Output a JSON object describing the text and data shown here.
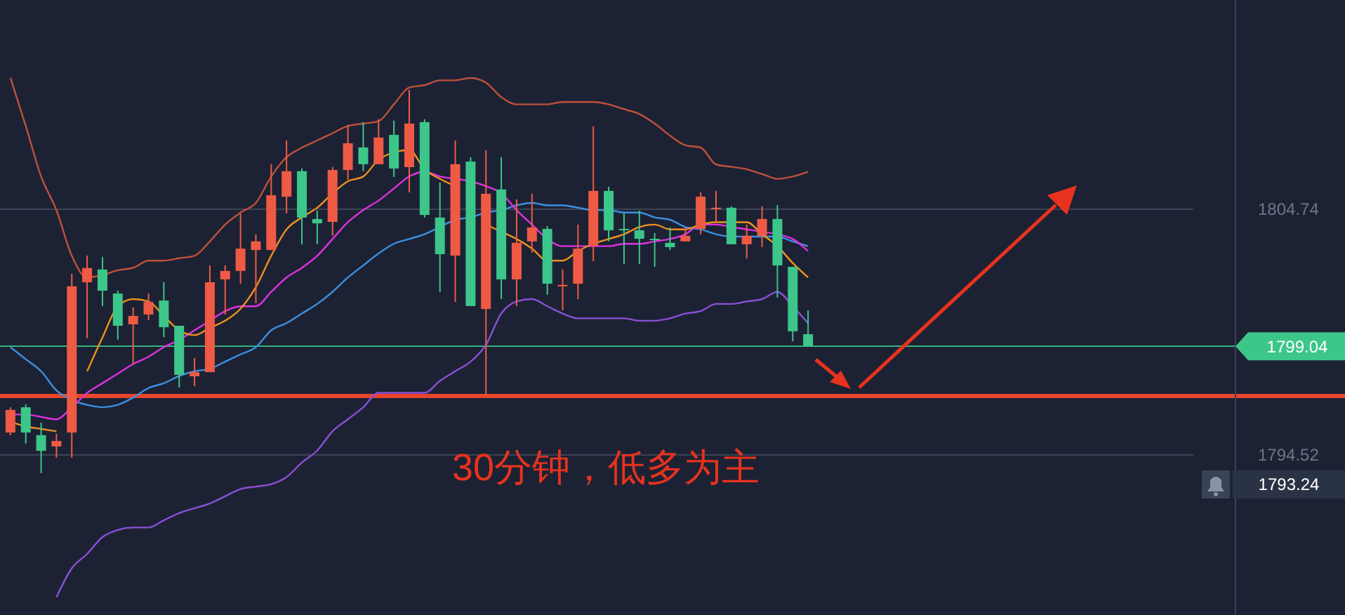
{
  "chart_data": {
    "type": "candlestick",
    "categories": [
      null,
      null,
      null,
      null,
      null,
      null,
      null,
      null,
      null,
      null,
      null,
      null,
      null,
      null,
      null,
      null,
      null,
      null,
      null,
      null,
      null,
      null,
      null,
      null,
      null,
      null,
      null,
      null,
      null,
      null,
      null,
      null,
      null,
      null,
      null,
      null,
      null,
      null,
      null,
      null,
      null,
      null,
      null,
      null,
      null,
      null,
      null,
      null,
      null,
      null,
      null,
      null,
      null
    ],
    "ohlc": [
      [
        1795.45,
        1796.5,
        1795.34,
        1796.39
      ],
      [
        1796.5,
        1796.62,
        1794.99,
        1795.45
      ],
      [
        1795.34,
        1795.86,
        1793.76,
        1794.69
      ],
      [
        1794.87,
        1795.39,
        1794.4,
        1795.1
      ],
      [
        1795.45,
        1802.05,
        1794.4,
        1801.53
      ],
      [
        1801.7,
        1802.81,
        1799.37,
        1802.29
      ],
      [
        1802.23,
        1802.75,
        1800.71,
        1801.35
      ],
      [
        1801.23,
        1801.35,
        1799.31,
        1799.89
      ],
      [
        1799.95,
        1800.65,
        1798.31,
        1800.3
      ],
      [
        1800.36,
        1801.23,
        1800.12,
        1800.88
      ],
      [
        1800.94,
        1801.7,
        1799.42,
        1799.83
      ],
      [
        1799.89,
        1799.89,
        1797.32,
        1797.85
      ],
      [
        1797.79,
        1798.55,
        1797.38,
        1797.96
      ],
      [
        1797.96,
        1802.4,
        1797.96,
        1801.7
      ],
      [
        1801.82,
        1802.4,
        1800.36,
        1802.17
      ],
      [
        1802.17,
        1804.56,
        1801.64,
        1803.1
      ],
      [
        1803.04,
        1803.69,
        1800.83,
        1803.4
      ],
      [
        1803.04,
        1806.61,
        1803.04,
        1805.32
      ],
      [
        1805.26,
        1807.6,
        1804.56,
        1806.32
      ],
      [
        1806.32,
        1806.43,
        1803.28,
        1804.39
      ],
      [
        1804.33,
        1804.68,
        1803.28,
        1804.15
      ],
      [
        1804.21,
        1806.49,
        1803.63,
        1806.37
      ],
      [
        1806.37,
        1808.24,
        1805.96,
        1807.48
      ],
      [
        1807.31,
        1808.36,
        1806.32,
        1806.61
      ],
      [
        1806.61,
        1808.48,
        1806.61,
        1807.72
      ],
      [
        1807.83,
        1808.42,
        1806.08,
        1806.43
      ],
      [
        1806.49,
        1809.7,
        1805.44,
        1808.3
      ],
      [
        1808.36,
        1808.48,
        1804.39,
        1804.5
      ],
      [
        1804.39,
        1805.85,
        1801.29,
        1802.87
      ],
      [
        1802.81,
        1807.6,
        1800.88,
        1806.61
      ],
      [
        1806.72,
        1806.9,
        1800.71,
        1800.71
      ],
      [
        1800.59,
        1807.19,
        1796.97,
        1805.38
      ],
      [
        1805.56,
        1806.9,
        1801.0,
        1801.82
      ],
      [
        1801.82,
        1805.15,
        1800.71,
        1803.34
      ],
      [
        1803.4,
        1805.38,
        1802.93,
        1803.98
      ],
      [
        1803.92,
        1804.04,
        1801.18,
        1801.64
      ],
      [
        1801.53,
        1802.23,
        1800.53,
        1801.59
      ],
      [
        1801.64,
        1804.1,
        1801.0,
        1803.1
      ],
      [
        1803.22,
        1808.18,
        1802.58,
        1805.5
      ],
      [
        1805.5,
        1805.67,
        1803.4,
        1803.86
      ],
      [
        1803.92,
        1804.56,
        1802.46,
        1803.86
      ],
      [
        1803.86,
        1804.68,
        1802.46,
        1803.51
      ],
      [
        1803.51,
        1803.75,
        1802.34,
        1803.45
      ],
      [
        1803.34,
        1803.98,
        1803.04,
        1803.16
      ],
      [
        1803.4,
        1803.98,
        1803.4,
        1803.63
      ],
      [
        1803.92,
        1805.44,
        1803.69,
        1805.26
      ],
      [
        1804.74,
        1805.5,
        1804.21,
        1804.8
      ],
      [
        1804.8,
        1804.86,
        1803.28,
        1803.28
      ],
      [
        1803.28,
        1804.1,
        1802.69,
        1803.63
      ],
      [
        1803.63,
        1804.86,
        1803.16,
        1804.33
      ],
      [
        1804.33,
        1804.91,
        1801.06,
        1802.4
      ],
      [
        1802.34,
        1802.34,
        1799.25,
        1799.66
      ],
      [
        1799.54,
        1800.53,
        1799.04,
        1799.04
      ]
    ],
    "colors": [
      "#ef5a45",
      "#3cc68a",
      "#3cc68a",
      "#ef5a45",
      "#ef5a45",
      "#ef5a45",
      "#3cc68a",
      "#3cc68a",
      "#ef5a45",
      "#ef5a45",
      "#3cc68a",
      "#3cc68a",
      "#ef5a45",
      "#ef5a45",
      "#ef5a45",
      "#ef5a45",
      "#ef5a45",
      "#ef5a45",
      "#ef5a45",
      "#3cc68a",
      "#3cc68a",
      "#ef5a45",
      "#ef5a45",
      "#3cc68a",
      "#ef5a45",
      "#3cc68a",
      "#ef5a45",
      "#3cc68a",
      "#3cc68a",
      "#ef5a45",
      "#3cc68a",
      "#ef5a45",
      "#3cc68a",
      "#ef5a45",
      "#ef5a45",
      "#3cc68a",
      "#ef5a45",
      "#ef5a45",
      "#ef5a45",
      "#3cc68a",
      "#3cc68a",
      "#3cc68a",
      "#3cc68a",
      "#3cc68a",
      "#ef5a45",
      "#ef5a45",
      "#ef5a45",
      "#3cc68a",
      "#ef5a45",
      "#ef5a45",
      "#3cc68a",
      "#3cc68a",
      "#3cc68a"
    ],
    "series": [
      {
        "type": "line",
        "color": "#c0503c",
        "values": [
          1810.2,
          1808.2,
          1806.1,
          1804.7,
          1802.8,
          1801.9,
          1802.0,
          1802.2,
          1802.3,
          1802.6,
          1802.6,
          1802.7,
          1802.8,
          1803.4,
          1804.1,
          1804.6,
          1805.0,
          1806.1,
          1806.9,
          1807.3,
          1807.6,
          1807.9,
          1808.2,
          1808.3,
          1808.4,
          1809.1,
          1809.8,
          1809.9,
          1810.1,
          1810.1,
          1810.2,
          1810.0,
          1809.4,
          1809.1,
          1809.1,
          1809.1,
          1809.2,
          1809.2,
          1809.2,
          1809.1,
          1808.9,
          1808.7,
          1808.3,
          1807.8,
          1807.4,
          1807.3,
          1806.6,
          1806.5,
          1806.4,
          1806.2,
          1806.0,
          1806.1,
          1806.3
        ]
      },
      {
        "type": "line",
        "color": "#8a4fd8",
        "values": [
          null,
          null,
          null,
          1788.6,
          1789.8,
          1790.4,
          1791.1,
          1791.4,
          1791.5,
          1791.5,
          1791.8,
          1792.1,
          1792.3,
          1792.5,
          1792.8,
          1793.1,
          1793.2,
          1793.3,
          1793.6,
          1794.2,
          1794.7,
          1795.5,
          1796.0,
          1796.5,
          1797.1,
          1797.1,
          1797.1,
          1797.1,
          1797.6,
          1798.0,
          1798.4,
          1799.1,
          1800.4,
          1800.9,
          1801.0,
          1800.7,
          1800.4,
          1800.2,
          1800.2,
          1800.2,
          1800.2,
          1800.1,
          1800.1,
          1800.2,
          1800.4,
          1800.5,
          1800.8,
          1800.8,
          1800.9,
          1801.0,
          1801.3,
          1800.7,
          1800.0
        ]
      },
      {
        "type": "line",
        "color": "#3d8fe0",
        "values": [
          1799.0,
          1798.5,
          1798.0,
          1797.2,
          1796.8,
          1796.6,
          1796.5,
          1796.6,
          1796.9,
          1797.3,
          1797.5,
          1797.8,
          1798.0,
          1798.1,
          1798.4,
          1798.7,
          1799.0,
          1799.7,
          1800.0,
          1800.4,
          1800.8,
          1801.3,
          1801.9,
          1802.4,
          1802.9,
          1803.3,
          1803.5,
          1803.7,
          1804.0,
          1804.3,
          1804.4,
          1804.6,
          1804.7,
          1804.9,
          1805.0,
          1804.9,
          1804.9,
          1804.8,
          1804.7,
          1804.7,
          1804.6,
          1804.6,
          1804.4,
          1804.3,
          1804.0,
          1803.9,
          1803.7,
          1803.6,
          1803.6,
          1803.6,
          1803.6,
          1803.4,
          1803.2
        ]
      },
      {
        "type": "line",
        "color": "#e030e0",
        "values": [
          1796.2,
          1796.2,
          1796.1,
          1796.0,
          1796.5,
          1797.1,
          1797.5,
          1797.9,
          1798.3,
          1798.6,
          1799.0,
          1799.3,
          1799.7,
          1800.1,
          1800.5,
          1800.7,
          1800.7,
          1801.3,
          1801.9,
          1802.3,
          1802.8,
          1803.5,
          1804.2,
          1804.7,
          1805.1,
          1805.6,
          1806.1,
          1806.3,
          1806.1,
          1806.0,
          1805.9,
          1805.7,
          1805.4,
          1804.7,
          1804.1,
          1803.5,
          1803.2,
          1803.2,
          1803.2,
          1803.2,
          1803.3,
          1803.3,
          1803.4,
          1803.5,
          1803.7,
          1804.1,
          1804.1,
          1804.0,
          1803.9,
          1803.8,
          1803.7,
          1803.5,
          1803.0
        ]
      },
      {
        "type": "line",
        "color": "#f0901e",
        "values": [
          1795.9,
          1795.7,
          1795.6,
          1795.5,
          null,
          1798.0,
          1799.4,
          1800.7,
          1801.0,
          1800.9,
          1800.3,
          1799.7,
          1799.5,
          1799.8,
          1800.1,
          1800.6,
          1801.5,
          1802.8,
          1803.9,
          1804.4,
          1804.8,
          1805.4,
          1805.9,
          1806.1,
          1806.8,
          1807.1,
          1807.2,
          1806.4,
          1806.0,
          1805.7,
          null,
          1804.1,
          1803.8,
          1803.5,
          1803.1,
          1802.6,
          1802.6,
          1803.0,
          1803.3,
          1803.5,
          1803.7,
          1804.0,
          1804.1,
          1803.9,
          1803.9,
          1804.1,
          1804.2,
          1804.2,
          1804.2,
          1803.7,
          1803.2,
          1802.5,
          1801.9
        ]
      }
    ],
    "ylim": [
      1787.86,
      1813.44
    ],
    "yticks": [
      1804.74,
      1794.52
    ],
    "grid": "y",
    "ref_lines": [
      {
        "axis": "y",
        "value": 1796.97,
        "color": "#e8452c"
      },
      {
        "axis": "y",
        "value": 1799.04,
        "label": "1799.04",
        "color": "#3cc68a"
      }
    ],
    "annotations": [
      "30分钟，低多为主",
      "1793.24"
    ]
  }
}
